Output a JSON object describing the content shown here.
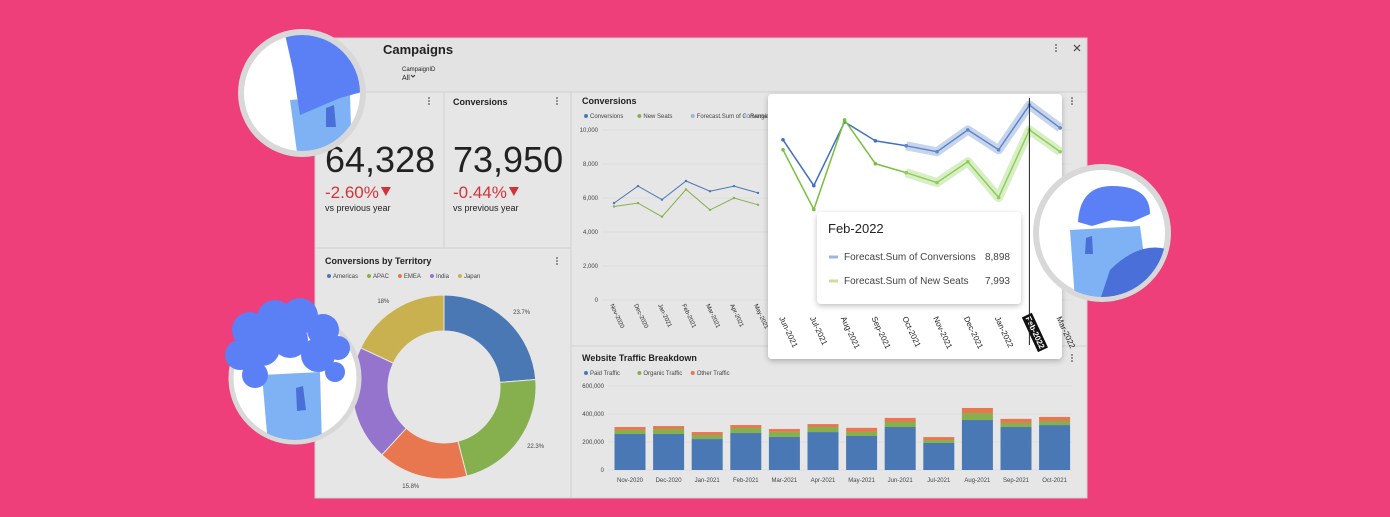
{
  "dashboard": {
    "title": "Campaigns",
    "filter": {
      "label": "CampaignID",
      "value": "All"
    }
  },
  "kpis": [
    {
      "value": "64,328",
      "change": "-2.60%",
      "note": "vs previous year"
    },
    {
      "title": "Conversions",
      "value": "73,950",
      "change": "-0.44%",
      "note": "vs previous year"
    }
  ],
  "chart_data": [
    {
      "type": "pie",
      "donut": true,
      "title": "Conversions by Territory",
      "categories": [
        "Americas",
        "APAC",
        "EMEA",
        "India",
        "Japan"
      ],
      "values": [
        23.7,
        22.3,
        15.8,
        20.2,
        18
      ],
      "value_labels": [
        "23.7%",
        "22.3%",
        "15.8%",
        null,
        "18%"
      ],
      "colors": [
        "#4a78b5",
        "#86b04e",
        "#e8764e",
        "#9474cc",
        "#c9b14f"
      ]
    },
    {
      "type": "line",
      "title": "Conversions",
      "categories": [
        "Nov-2020",
        "Dec-2020",
        "Jan-2021",
        "Feb-2021",
        "Mar-2021",
        "Apr-2021",
        "May-2021"
      ],
      "series": [
        {
          "name": "Conversions",
          "color": "#4a78b5",
          "values": [
            5700,
            6700,
            5900,
            7000,
            6400,
            6700,
            6300
          ]
        },
        {
          "name": "New Seats",
          "color": "#86b04e",
          "values": [
            5500,
            5700,
            4900,
            6500,
            5300,
            6000,
            5600
          ]
        },
        {
          "name": "Forecast.Sum of Conversions",
          "color": "#9fb6d8",
          "values": [
            null,
            null,
            null,
            null,
            null,
            null,
            null
          ]
        },
        {
          "name": "Range",
          "color": "#b8c6d8",
          "values": [
            null,
            null,
            null,
            null,
            null,
            null,
            null
          ]
        }
      ],
      "ylim": [
        0,
        10000
      ],
      "yticks": [
        0,
        {
          "value": 2000,
          "label": "2,000"
        },
        {
          "value": 4000,
          "label": "4,000"
        },
        {
          "value": 6000,
          "label": "6,000"
        },
        {
          "value": 8000,
          "label": "8,000"
        },
        {
          "value": 10000,
          "label": "10,000"
        }
      ]
    },
    {
      "type": "line",
      "categories": [
        "Jun-2021",
        "Jul-2021",
        "Aug-2021",
        "Sep-2021",
        "Oct-2021",
        "Nov-2021",
        "Dec-2021",
        "Jan-2022",
        "Feb-2022",
        "Mar-2022"
      ],
      "highlight_index": 8,
      "series": [
        {
          "color": "#3f70c4",
          "values": [
            7631,
            5966,
            8283,
            7595,
            7414,
            null,
            null,
            null,
            null,
            null
          ]
        },
        {
          "color": "#79bf3c",
          "values": [
            7269,
            5097,
            8355,
            6762,
            6436,
            null,
            null,
            null,
            null,
            null
          ]
        },
        {
          "color": "#5e86c9",
          "forecast": true,
          "values": [
            null,
            null,
            null,
            null,
            7414,
            7197,
            7993,
            7269,
            8898,
            8065
          ]
        },
        {
          "color": "#8fcd5a",
          "forecast": true,
          "values": [
            null,
            null,
            null,
            null,
            6436,
            6074,
            6835,
            5531,
            7993,
            7197
          ]
        }
      ],
      "ylim": [
        1800,
        9300
      ]
    },
    {
      "type": "bar",
      "stacked": true,
      "title": "Website Traffic Breakdown",
      "categories": [
        "Nov-2020",
        "Dec-2020",
        "Jan-2021",
        "Feb-2021",
        "Mar-2021",
        "Apr-2021",
        "May-2021",
        "Jun-2021",
        "Jul-2021",
        "Aug-2021",
        "Sep-2021",
        "Oct-2021"
      ],
      "series": [
        {
          "name": "Paid Traffic",
          "color": "#4a78b5",
          "values": [
            257000,
            257000,
            221000,
            264000,
            236000,
            271000,
            243000,
            307000,
            193000,
            357000,
            307000,
            321000
          ]
        },
        {
          "name": "Organic Traffic",
          "color": "#86b04e",
          "values": [
            29000,
            36000,
            29000,
            36000,
            36000,
            36000,
            29000,
            36000,
            21000,
            50000,
            29000,
            29000
          ]
        },
        {
          "name": "Other Traffic",
          "color": "#e8764e",
          "values": [
            21000,
            21000,
            21000,
            21000,
            21000,
            21000,
            29000,
            29000,
            21000,
            36000,
            29000,
            29000
          ]
        }
      ],
      "ylim": [
        0,
        600000
      ],
      "yticks": [
        0,
        {
          "value": 200000,
          "label": "200,000"
        },
        {
          "value": 400000,
          "label": "400,000"
        },
        {
          "value": 600000,
          "label": "600,000"
        }
      ]
    }
  ],
  "tooltip": {
    "title": "Feb-2022",
    "items": [
      {
        "name": "Forecast.Sum of Conversions",
        "value": "8,898",
        "color": "#9fb6e0"
      },
      {
        "name": "Forecast.Sum of New Seats",
        "value": "7,993",
        "color": "#c5e29a"
      }
    ]
  }
}
